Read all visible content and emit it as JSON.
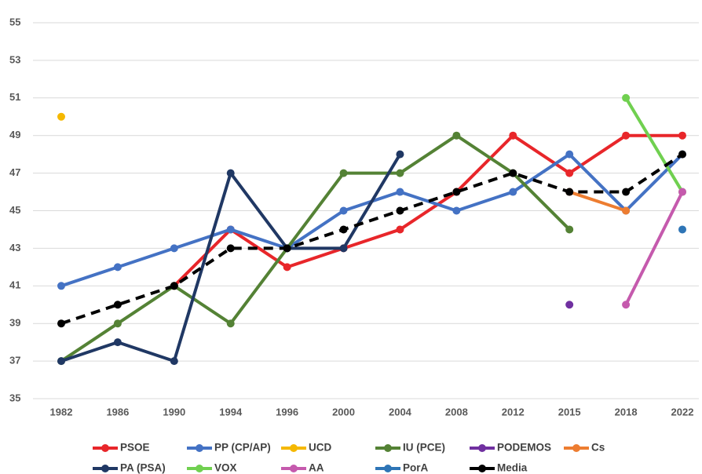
{
  "chart_data": {
    "type": "line",
    "categories": [
      "1982",
      "1986",
      "1990",
      "1994",
      "1996",
      "2000",
      "2004",
      "2008",
      "2012",
      "2015",
      "2018",
      "2022"
    ],
    "ylim": [
      35,
      55
    ],
    "yticks": [
      35,
      37,
      39,
      41,
      43,
      45,
      47,
      49,
      51,
      53,
      55
    ],
    "grid": true,
    "series": [
      {
        "name": "PSOE",
        "color": "#e8262a",
        "values": [
          null,
          null,
          41,
          44,
          42,
          43,
          44,
          46,
          49,
          47,
          49,
          49
        ]
      },
      {
        "name": "PP (CP/AP)",
        "color": "#4472c4",
        "values": [
          41,
          42,
          43,
          44,
          43,
          45,
          46,
          45,
          46,
          48,
          45,
          48
        ]
      },
      {
        "name": "UCD",
        "color": "#f5b800",
        "values": [
          50,
          null,
          null,
          null,
          null,
          null,
          null,
          null,
          null,
          null,
          null,
          null
        ]
      },
      {
        "name": "IU (PCE)",
        "color": "#548235",
        "values": [
          37,
          39,
          41,
          39,
          43,
          47,
          47,
          49,
          47,
          44,
          null,
          null
        ]
      },
      {
        "name": "PODEMOS",
        "color": "#7030a0",
        "values": [
          null,
          null,
          null,
          null,
          null,
          null,
          null,
          null,
          null,
          40,
          null,
          null
        ]
      },
      {
        "name": "Cs",
        "color": "#ed7d31",
        "values": [
          null,
          null,
          null,
          null,
          null,
          null,
          null,
          null,
          null,
          46,
          45,
          null
        ]
      },
      {
        "name": "PA (PSA)",
        "color": "#203864",
        "values": [
          37,
          38,
          37,
          47,
          43,
          43,
          48,
          null,
          null,
          null,
          null,
          null
        ]
      },
      {
        "name": "VOX",
        "color": "#70d050",
        "values": [
          null,
          null,
          null,
          null,
          null,
          null,
          null,
          null,
          null,
          null,
          51,
          46
        ]
      },
      {
        "name": "AA",
        "color": "#c55aad",
        "values": [
          null,
          null,
          null,
          null,
          null,
          null,
          null,
          null,
          null,
          null,
          40,
          46
        ]
      },
      {
        "name": "PorA",
        "color": "#2e75b6",
        "values": [
          null,
          null,
          null,
          null,
          null,
          null,
          null,
          null,
          null,
          null,
          null,
          44
        ]
      },
      {
        "name": "Media",
        "color": "#000000",
        "dashed": true,
        "values": [
          39,
          40,
          41,
          43,
          43,
          44,
          45,
          46,
          47,
          46,
          46,
          48
        ]
      }
    ]
  }
}
